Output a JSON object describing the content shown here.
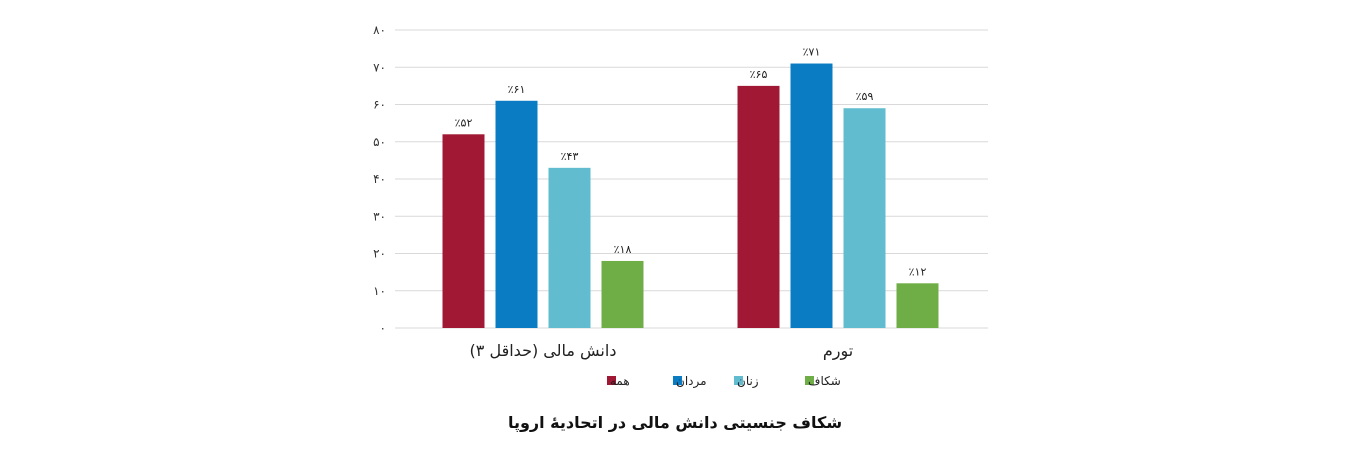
{
  "chart_data": {
    "type": "bar",
    "title": "شکاف جنسیتی دانش مالی در اتحادیهٔ اروپا",
    "categories": [
      "دانش مالی (حداقل ۳)",
      "تورم"
    ],
    "series": [
      {
        "name": "همه",
        "color": "#a01834",
        "values": [
          52,
          65
        ],
        "labels": [
          "٪۵۲",
          "٪۶۵"
        ]
      },
      {
        "name": "مردان",
        "color": "#0a7cc4",
        "values": [
          61,
          71
        ],
        "labels": [
          "٪۶۱",
          "٪۷۱"
        ]
      },
      {
        "name": "زنان",
        "color": "#62bcd0",
        "values": [
          43,
          59
        ],
        "labels": [
          "٪۴۳",
          "٪۵۹"
        ]
      },
      {
        "name": "شکاف",
        "color": "#6fad47",
        "values": [
          18,
          12
        ],
        "labels": [
          "٪۱۸",
          "٪۱۲"
        ]
      }
    ],
    "ylim": [
      0,
      80
    ],
    "yticks": [
      0,
      10,
      20,
      30,
      40,
      50,
      60,
      70,
      80
    ],
    "ytick_labels": [
      "۰",
      "۱۰",
      "۲۰",
      "۳۰",
      "۴۰",
      "۵۰",
      "۶۰",
      "۷۰",
      "۸۰"
    ],
    "grid": true,
    "legend_position": "bottom"
  }
}
